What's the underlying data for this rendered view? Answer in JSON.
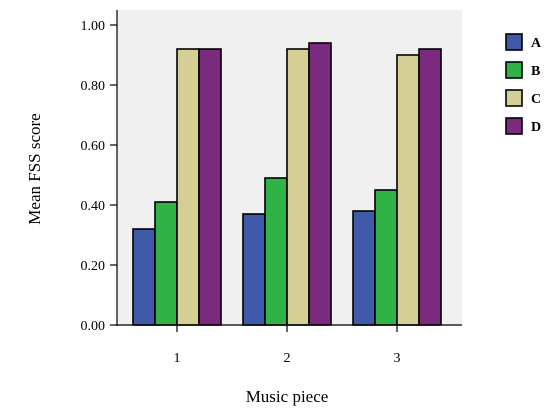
{
  "chart_data": {
    "type": "bar",
    "xlabel": "Music piece",
    "ylabel": "Mean FSS score",
    "categories": [
      "1",
      "2",
      "3"
    ],
    "ylim": [
      0,
      1.0
    ],
    "yticks": [
      "0.00",
      "0.20",
      "0.40",
      "0.60",
      "0.80",
      "1.00"
    ],
    "grid": false,
    "plot_background": "#f0f0f0",
    "legend_position": "right",
    "series": [
      {
        "name": "A",
        "color": "#3e5aa9",
        "values": [
          0.32,
          0.37,
          0.38
        ]
      },
      {
        "name": "B",
        "color": "#2fb347",
        "values": [
          0.41,
          0.49,
          0.45
        ]
      },
      {
        "name": "C",
        "color": "#d6cf95",
        "values": [
          0.92,
          0.92,
          0.9
        ]
      },
      {
        "name": "D",
        "color": "#7a2b7e",
        "values": [
          0.92,
          0.94,
          0.92
        ]
      }
    ]
  }
}
